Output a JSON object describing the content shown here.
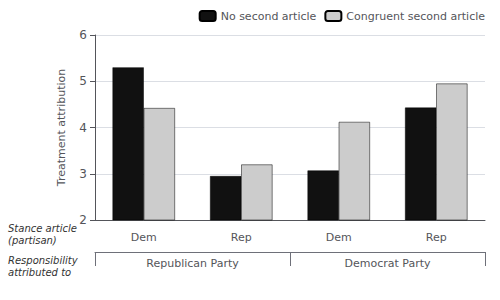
{
  "chart_data": {
    "type": "bar",
    "categories": [
      "Dem",
      "Rep",
      "Dem",
      "Rep"
    ],
    "group_labels": [
      "Republican Party",
      "Democrat Party"
    ],
    "row_labels": [
      "Stance article\n(partisan)",
      "Responsibility\nattributed to"
    ],
    "series": [
      {
        "name": "No second article",
        "color": "#111111",
        "values": [
          5.3,
          2.95,
          3.07,
          4.43
        ]
      },
      {
        "name": "Congruent second article",
        "color": "#cccccc",
        "values": [
          4.42,
          3.2,
          4.12,
          4.95
        ]
      }
    ],
    "ylabel": "Treatment attribution",
    "ylim": [
      2,
      6
    ],
    "yticks": [
      2,
      3,
      4,
      5,
      6
    ],
    "grid": true,
    "legend": "upper right"
  }
}
